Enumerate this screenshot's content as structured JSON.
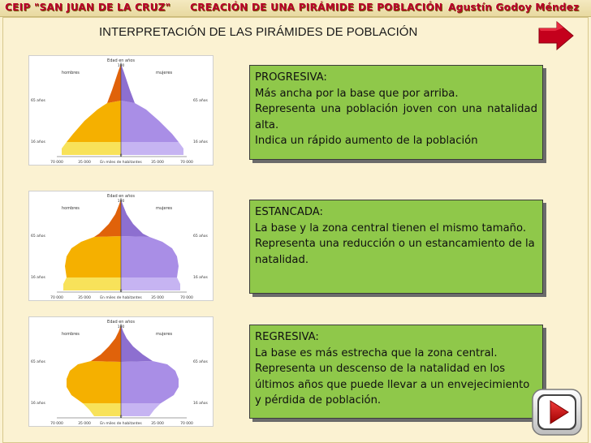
{
  "header": {
    "school": "CEIP \"SAN JUAN DE LA CRUZ\"",
    "title": "CREACIÓN DE UNA PIRÁMIDE DE POBLACIÓN",
    "author": "Agustín Godoy Méndez"
  },
  "page_title": "INTERPRETACIÓN DE LAS PIRÁMIDES DE POBLACIÓN",
  "pyramid_labels": {
    "age_axis": "Edad en años",
    "top_age": "100",
    "men": "hombres",
    "women": "mujeres",
    "age_65": "65 años",
    "age_16": "16 años",
    "zero": "0",
    "tick_left_outer": "70 000",
    "tick_left_inner": "35 000",
    "x_axis": "En miles de habitantes",
    "tick_right_inner": "35 000",
    "tick_right_outer": "70 000"
  },
  "cards": [
    {
      "title": "PROGRESIVA:",
      "lines": [
        "Más ancha por la base que por arriba.",
        "Representa una población joven con una natalidad alta.",
        "Indica un rápido aumento de la población"
      ]
    },
    {
      "title": "ESTANCADA:",
      "lines": [
        "La base y la zona central tienen el mismo tamaño.",
        "Representa una reducción o un estancamiento de la natalidad."
      ]
    },
    {
      "title": "REGRESIVA:",
      "lines": [
        "La base es más estrecha que la zona central.",
        "Representa un descenso de la natalidad en los últimos años que puede llevar a un envejecimiento y pérdida de población."
      ]
    }
  ],
  "icons": {
    "next_arrow": "red-right-arrow-icon",
    "play": "play-icon"
  },
  "colors": {
    "card_bg": "#8fc84a",
    "header_text": "#b8002a",
    "men_dark": "#e0620a",
    "men_mid": "#f5b000",
    "men_light": "#f8e25a",
    "women_dark": "#8d6fd0",
    "women_mid": "#a98ee6",
    "women_light": "#c6b4f2"
  }
}
